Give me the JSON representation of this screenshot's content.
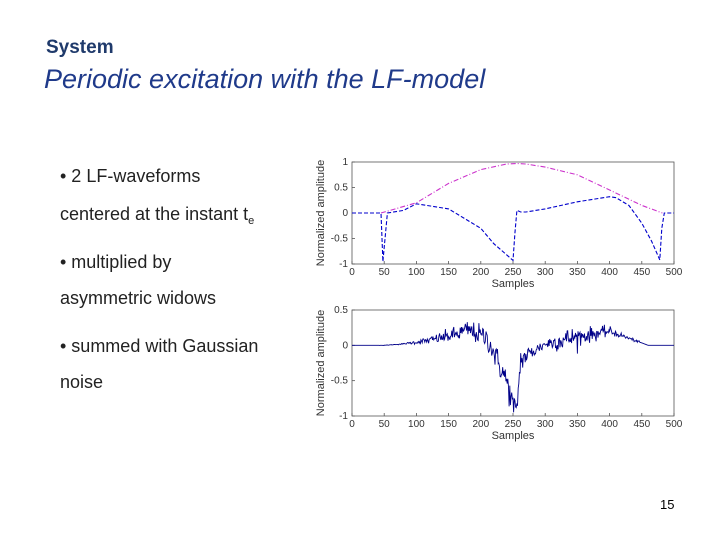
{
  "slide": {
    "kicker": "System",
    "title": "Periodic excitation with the LF-model",
    "bullets": [
      {
        "line1": "• 2 LF-waveforms",
        "line2_main": "centered at the instant t",
        "line2_sub": "e"
      },
      {
        "line1": "• multiplied by",
        "line2_main": "asymmetric widows"
      },
      {
        "line1": "• summed with Gaussian",
        "line2_main": "noise"
      }
    ],
    "page_number": "15"
  },
  "chart_data": [
    {
      "type": "line",
      "title": "",
      "xlabel": "Samples",
      "ylabel": "Normalized amplitude",
      "xlim": [
        0,
        500
      ],
      "ylim": [
        -1,
        1
      ],
      "xticks": [
        "0",
        "50",
        "100",
        "150",
        "200",
        "250",
        "300",
        "350",
        "400",
        "450",
        "500"
      ],
      "yticks": [
        "1",
        "0.5",
        "0",
        "-0.5",
        "-1"
      ],
      "series": [
        {
          "color": "#0000cc",
          "style": "dashed",
          "x": [
            0,
            45,
            48,
            55,
            80,
            100,
            150,
            200,
            220,
            240,
            250,
            253,
            256,
            262,
            270,
            300,
            350,
            400,
            410,
            430,
            450,
            465,
            478,
            481,
            485,
            500
          ],
          "y": [
            0,
            0,
            -0.95,
            0,
            0.05,
            0.18,
            0.08,
            -0.3,
            -0.6,
            -0.82,
            -0.93,
            -0.4,
            0.05,
            0.02,
            0.02,
            0.08,
            0.22,
            0.32,
            0.3,
            0.15,
            -0.2,
            -0.55,
            -0.92,
            -0.3,
            0,
            0
          ]
        },
        {
          "color": "#cc33cc",
          "style": "dashdot",
          "x": [
            45,
            100,
            150,
            200,
            240,
            255,
            270,
            300,
            350,
            400,
            450,
            482
          ],
          "y": [
            0,
            0.2,
            0.58,
            0.85,
            0.96,
            0.97,
            0.96,
            0.9,
            0.75,
            0.45,
            0.15,
            0
          ]
        }
      ]
    },
    {
      "type": "line",
      "title": "",
      "xlabel": "Samples",
      "ylabel": "Normalized amplitude",
      "xlim": [
        0,
        500
      ],
      "ylim": [
        -1,
        0.5
      ],
      "xticks": [
        "0",
        "50",
        "100",
        "150",
        "200",
        "250",
        "300",
        "350",
        "400",
        "450",
        "500"
      ],
      "yticks": [
        "0.5",
        "0",
        "-0.5",
        "-1"
      ],
      "series": [
        {
          "color": "#000088",
          "style": "solid",
          "noise_sd": [
            0,
            0,
            0.005,
            0.03,
            0.06,
            0.08,
            0.1,
            0.04,
            0.08,
            0.05,
            0.02,
            0,
            0
          ],
          "x": [
            0,
            50,
            80,
            120,
            160,
            180,
            210,
            240,
            250,
            255,
            262,
            300,
            350,
            400,
            430,
            460,
            500
          ],
          "y": [
            0,
            0,
            0.02,
            0.07,
            0.15,
            0.22,
            0.1,
            -0.5,
            -0.85,
            -0.97,
            -0.2,
            0.02,
            0.12,
            0.2,
            0.1,
            0,
            0
          ]
        }
      ]
    }
  ]
}
